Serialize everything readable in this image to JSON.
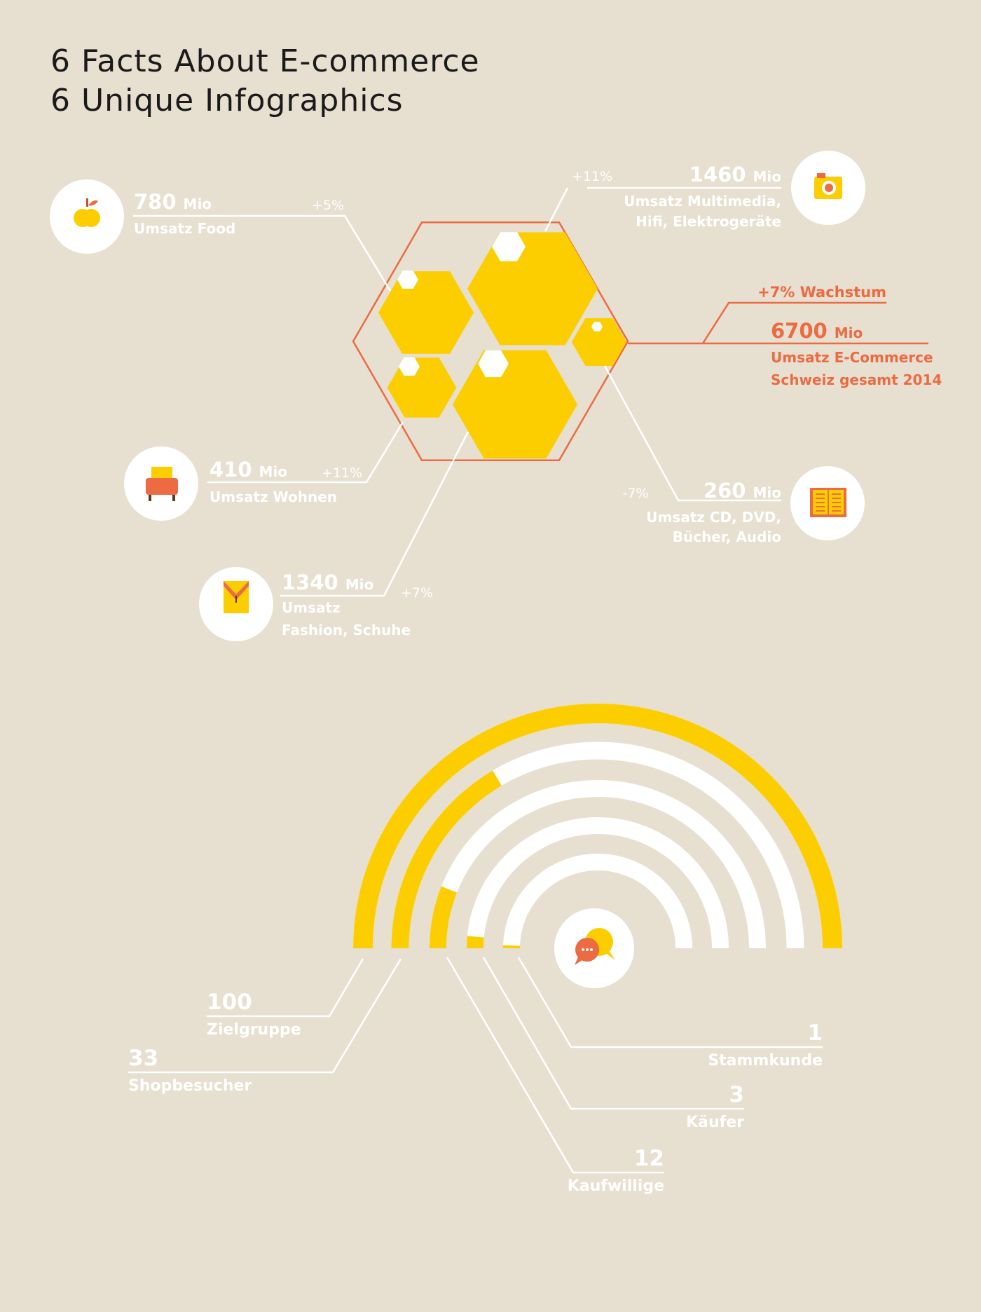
{
  "title_lines": [
    "6 Facts About E-commerce",
    "6 Unique Infographics"
  ],
  "colors": {
    "background": "#e7dfcf",
    "yellow": "#fcce00",
    "orange": "#ec6b43",
    "white": "#ffffff",
    "dark": "#1a1a1a"
  },
  "unit": "Mio",
  "chart_data": [
    {
      "type": "bubble-hexagon",
      "total": {
        "value": 6700,
        "unit": "Mio",
        "growth": "+7% Wachstum",
        "label_lines": [
          "Umsatz E-Commerce",
          "Schweiz gesamt 2014"
        ]
      },
      "categories": [
        {
          "name": "Food",
          "icon": "apple-icon",
          "value": 780,
          "unit": "Mio",
          "label_lines": [
            "Umsatz Food"
          ],
          "growth": "+5%"
        },
        {
          "name": "Multimedia",
          "icon": "camera-icon",
          "value": 1460,
          "unit": "Mio",
          "label_lines": [
            "Umsatz Multimedia,",
            "Hifi, Elektrogeräte"
          ],
          "growth": "+11%"
        },
        {
          "name": "Wohnen",
          "icon": "armchair-icon",
          "value": 410,
          "unit": "Mio",
          "label_lines": [
            "Umsatz Wohnen"
          ],
          "growth": "+11%"
        },
        {
          "name": "Fashion",
          "icon": "shirt-icon",
          "value": 1340,
          "unit": "Mio",
          "label_lines": [
            "Umsatz",
            "Fashion, Schuhe"
          ],
          "growth": "+7%"
        },
        {
          "name": "Media",
          "icon": "book-icon",
          "value": 260,
          "unit": "Mio",
          "label_lines": [
            "Umsatz CD, DVD,",
            "Bücher, Audio"
          ],
          "growth": "-7%"
        }
      ]
    },
    {
      "type": "funnel-arc",
      "icon": "chat-bubbles-icon",
      "stages": [
        {
          "value": 100,
          "label": "Zielgruppe",
          "fill_fraction": 1.0
        },
        {
          "value": 33,
          "label": "Shopbesucher",
          "fill_fraction": 0.33
        },
        {
          "value": 12,
          "label": "Kaufwillige",
          "fill_fraction": 0.12
        },
        {
          "value": 3,
          "label": "Käufer",
          "fill_fraction": 0.03
        },
        {
          "value": 1,
          "label": "Stammkunde",
          "fill_fraction": 0.01
        }
      ]
    }
  ]
}
